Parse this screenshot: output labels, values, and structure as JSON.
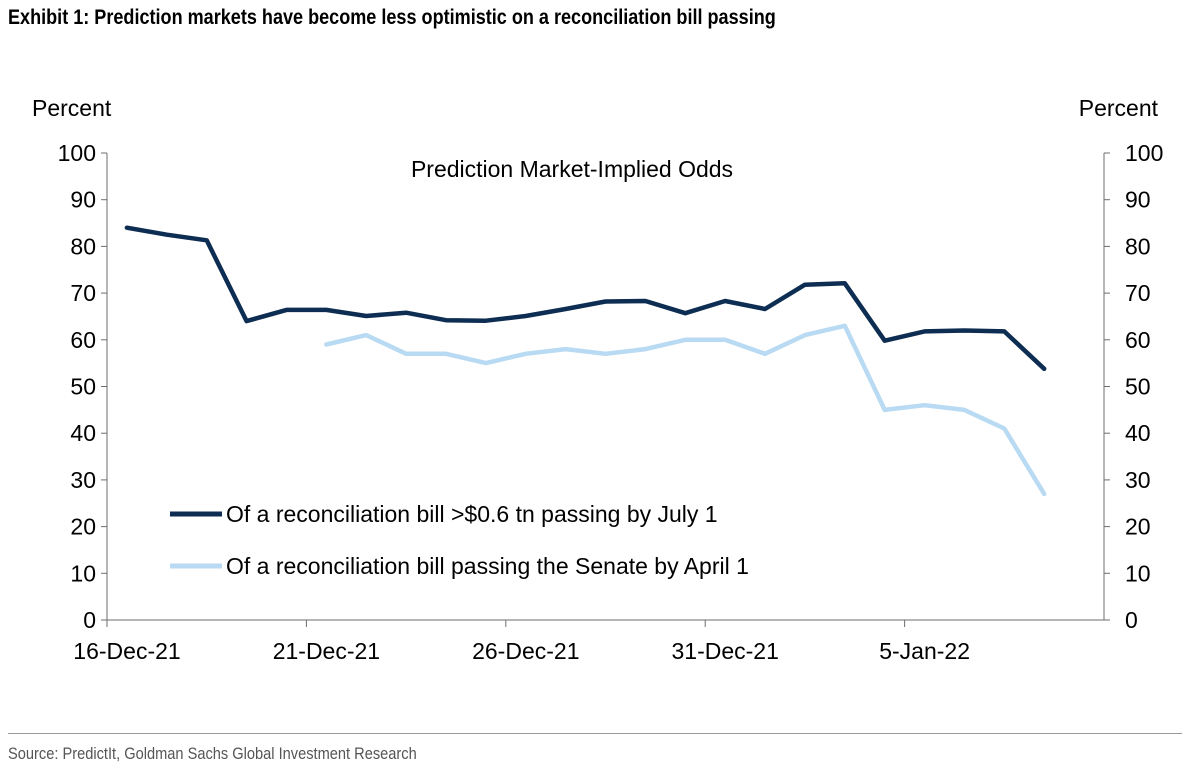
{
  "header": {
    "title": "Exhibit 1: Prediction markets have become less optimistic on a reconciliation bill passing"
  },
  "footer": {
    "source": "Source: PredictIt, Goldman Sachs Global Investment Research"
  },
  "chart_data": {
    "type": "line",
    "title": "Prediction Market-Implied Odds",
    "ylabel_left": "Percent",
    "ylabel_right": "Percent",
    "ylim": [
      0,
      100
    ],
    "yticks": [
      0,
      10,
      20,
      30,
      40,
      50,
      60,
      70,
      80,
      90,
      100
    ],
    "x_days": 25,
    "x_tick_labels": [
      {
        "day": 0,
        "label": "16-Dec-21"
      },
      {
        "day": 5,
        "label": "21-Dec-21"
      },
      {
        "day": 10,
        "label": "26-Dec-21"
      },
      {
        "day": 15,
        "label": "31-Dec-21"
      },
      {
        "day": 20,
        "label": "5-Jan-22"
      }
    ],
    "series": [
      {
        "name": "Of a reconciliation bill >$0.6 tn passing by July 1",
        "color": "#0d2d52",
        "x": [
          0.5,
          1.5,
          2.5,
          3.5,
          4.5,
          5.5,
          6.5,
          7.5,
          8.5,
          9.5,
          10.5,
          11.5,
          12.5,
          13.5,
          14.5,
          15.5,
          16.5,
          17.5,
          18.5,
          19.5,
          20.5,
          21.5,
          22.5,
          23.5
        ],
        "values": [
          84,
          82.5,
          81.3,
          64,
          66.4,
          66.4,
          65.1,
          65.8,
          64.2,
          64.1,
          65.1,
          66.6,
          68.2,
          68.3,
          65.7,
          68.3,
          66.6,
          71.8,
          72.1,
          59.8,
          61.8,
          62,
          61.8,
          53.8
        ]
      },
      {
        "name": "Of a reconciliation bill passing the Senate by April 1",
        "color": "#b8daf2",
        "x": [
          5.5,
          6.5,
          7.5,
          8.5,
          9.5,
          10.5,
          11.5,
          12.5,
          13.5,
          14.5,
          15.5,
          16.5,
          17.5,
          18.5,
          19.5,
          20.5,
          21.5,
          22.5,
          23.5
        ],
        "values": [
          59,
          61,
          57,
          57,
          55,
          57,
          58,
          57,
          58,
          60,
          60,
          57,
          61,
          63,
          45,
          46,
          45,
          41,
          27
        ]
      }
    ]
  }
}
